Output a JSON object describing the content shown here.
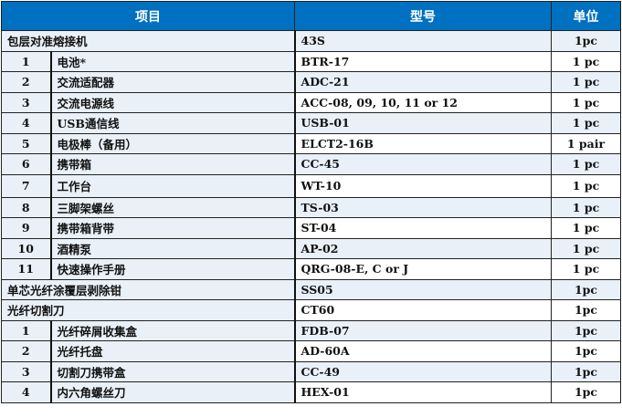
{
  "header": {
    "item": "项目",
    "model": "型号",
    "unit": "单位"
  },
  "rows": [
    {
      "num": "",
      "name": "包层对准熔接机",
      "model": "43S",
      "unit": "1pc",
      "group": true
    },
    {
      "num": "1",
      "name": "电池*",
      "model": "BTR-17",
      "unit": "1 pc"
    },
    {
      "num": "2",
      "name": "交流适配器",
      "model": "ADC-21",
      "unit": "1 pc"
    },
    {
      "num": "3",
      "name": "交流电源线",
      "model": "ACC-08, 09, 10, 11 or 12",
      "unit": "1 pc"
    },
    {
      "num": "4",
      "name": "USB通信线",
      "model": "USB-01",
      "unit": "1 pc"
    },
    {
      "num": "5",
      "name": "电极棒（备用）",
      "model": "ELCT2-16B",
      "unit": "1 pair"
    },
    {
      "num": "6",
      "name": "携带箱",
      "model": "CC-45",
      "unit": "1 pc"
    },
    {
      "num": "7",
      "name": "工作台",
      "model": "WT-10",
      "unit": "1 pc"
    },
    {
      "num": "8",
      "name": "三脚架螺丝",
      "model": "TS-03",
      "unit": "1 pc"
    },
    {
      "num": "9",
      "name": "携带箱背带",
      "model": "ST-04",
      "unit": "1 pc"
    },
    {
      "num": "10",
      "name": "酒精泵",
      "model": "AP-02",
      "unit": "1 pc"
    },
    {
      "num": "11",
      "name": "快速操作手册",
      "model": "QRG-08-E, C or J",
      "unit": "1 pc"
    },
    {
      "num": "",
      "name": "单芯光纤涂覆层剥除钳",
      "model": "SS05",
      "unit": "1pc",
      "group": true
    },
    {
      "num": "",
      "name": "光纤切割刀",
      "model": "CT60",
      "unit": "1pc",
      "group": true
    },
    {
      "num": "1",
      "name": "光纤碎屑收集盒",
      "model": "FDB-07",
      "unit": "1pc"
    },
    {
      "num": "2",
      "name": "光纤托盘",
      "model": "AD-60A",
      "unit": "1pc"
    },
    {
      "num": "3",
      "name": "切割刀携带盒",
      "model": "CC-49",
      "unit": "1pc"
    },
    {
      "num": "4",
      "name": "内六角螺丝刀",
      "model": "HEX-01",
      "unit": "1pc"
    }
  ]
}
